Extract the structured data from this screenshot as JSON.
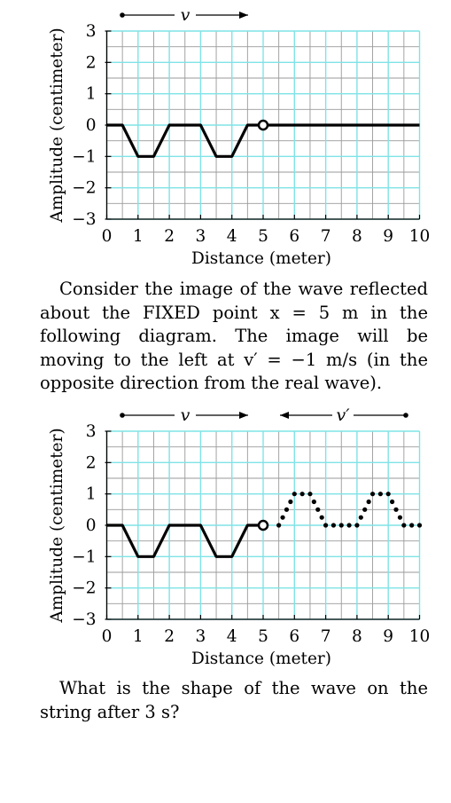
{
  "chart_data": [
    {
      "type": "line",
      "xlabel": "Distance (meter)",
      "ylabel": "Amplitude (centimeter)",
      "xlim": [
        0,
        10
      ],
      "ylim": [
        -3,
        3
      ],
      "x_ticks": [
        0,
        1,
        2,
        3,
        4,
        5,
        6,
        7,
        8,
        9,
        10
      ],
      "y_ticks": [
        3,
        2,
        1,
        0,
        -1,
        -2,
        -3
      ],
      "y_tick_labels": [
        "3",
        "2",
        "1",
        "0",
        "−1",
        "−2",
        "−3"
      ],
      "grid": true,
      "minor_grid_step": 0.5,
      "arrow_label": "v",
      "arrow_direction": "right",
      "fixed_point": [
        5,
        0
      ],
      "series": [
        {
          "style": "solid",
          "points": [
            [
              0,
              0
            ],
            [
              0.5,
              0
            ],
            [
              1,
              -1
            ],
            [
              1.5,
              -1
            ],
            [
              2,
              0
            ],
            [
              3,
              0
            ],
            [
              3.5,
              -1
            ],
            [
              4,
              -1
            ],
            [
              4.5,
              0
            ],
            [
              5,
              0
            ],
            [
              10,
              0
            ]
          ]
        }
      ]
    },
    {
      "type": "line",
      "xlabel": "Distance (meter)",
      "ylabel": "Amplitude (centimeter)",
      "xlim": [
        0,
        10
      ],
      "ylim": [
        -3,
        3
      ],
      "x_ticks": [
        0,
        1,
        2,
        3,
        4,
        5,
        6,
        7,
        8,
        9,
        10
      ],
      "y_ticks": [
        3,
        2,
        1,
        0,
        -1,
        -2,
        -3
      ],
      "y_tick_labels": [
        "3",
        "2",
        "1",
        "0",
        "−1",
        "−2",
        "−3"
      ],
      "grid": true,
      "minor_grid_step": 0.5,
      "arrow_label": "v",
      "arrow_direction": "right",
      "arrow2_label": "v′",
      "arrow2_direction": "left",
      "fixed_point": [
        5,
        0
      ],
      "series": [
        {
          "style": "solid",
          "points": [
            [
              0,
              0
            ],
            [
              0.5,
              0
            ],
            [
              1,
              -1
            ],
            [
              1.5,
              -1
            ],
            [
              2,
              0
            ],
            [
              3,
              0
            ],
            [
              3.5,
              -1
            ],
            [
              4,
              -1
            ],
            [
              4.5,
              0
            ],
            [
              5,
              0
            ]
          ]
        },
        {
          "style": "dotted",
          "points": [
            [
              5,
              0
            ],
            [
              5.5,
              0
            ],
            [
              6,
              1
            ],
            [
              6.5,
              1
            ],
            [
              7,
              0
            ],
            [
              8,
              0
            ],
            [
              8.5,
              1
            ],
            [
              9,
              1
            ],
            [
              9.5,
              0
            ],
            [
              10,
              0
            ]
          ]
        }
      ]
    }
  ],
  "text": {
    "paragraph1": "Consider the image of the wave reflected about the FIXED point x = 5 m in the following diagram. The image will be moving to the left at v′ = −1 m/s (in the opposite direction from the real wave).",
    "paragraph2": "What is the shape of the wave on the string after 3 s?"
  }
}
